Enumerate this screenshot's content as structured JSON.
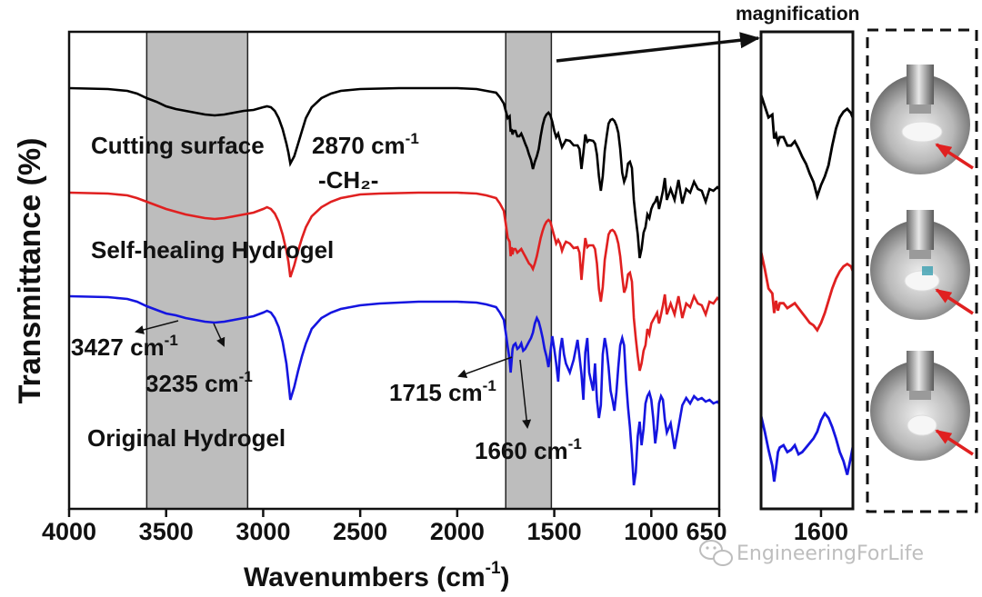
{
  "chart_data": [
    {
      "type": "line",
      "panel": "main",
      "xlabel": "Wavenumbers (cm",
      "xlabel_sup": "-1",
      "xlabel_close": ")",
      "ylabel": "Transmittance (%)",
      "xlim": [
        4000,
        650
      ],
      "x_ticks": [
        4000,
        3500,
        3000,
        2500,
        2000,
        1500,
        1000,
        650
      ],
      "x_tick_labels": [
        "4000",
        "3500",
        "3000",
        "2500",
        "2000",
        "1500",
        "1000",
        "650"
      ],
      "y_ticks": false,
      "shaded_regions": [
        [
          3600,
          3080
        ],
        [
          1750,
          1515
        ]
      ],
      "series": [
        {
          "name": "Cutting surface",
          "color": "#000000",
          "x": [
            4000,
            3900,
            3800,
            3700,
            3650,
            3600,
            3550,
            3500,
            3450,
            3400,
            3350,
            3300,
            3250,
            3200,
            3150,
            3100,
            3050,
            3000,
            2980,
            2960,
            2940,
            2920,
            2900,
            2880,
            2870,
            2860,
            2840,
            2820,
            2800,
            2780,
            2750,
            2700,
            2650,
            2600,
            2550,
            2500,
            2400,
            2300,
            2200,
            2100,
            2000,
            1900,
            1850,
            1800,
            1780,
            1760,
            1750,
            1740,
            1730,
            1725,
            1720,
            1715,
            1710,
            1700,
            1690,
            1680,
            1670,
            1660,
            1650,
            1640,
            1630,
            1620,
            1610,
            1600,
            1590,
            1580,
            1570,
            1560,
            1550,
            1540,
            1530,
            1520,
            1510,
            1500,
            1490,
            1480,
            1470,
            1460,
            1450,
            1440,
            1420,
            1400,
            1380,
            1370,
            1360,
            1350,
            1340,
            1330,
            1320,
            1300,
            1290,
            1280,
            1270,
            1260,
            1250,
            1240,
            1230,
            1220,
            1210,
            1200,
            1190,
            1180,
            1170,
            1160,
            1150,
            1140,
            1130,
            1120,
            1110,
            1100,
            1090,
            1080,
            1070,
            1060,
            1050,
            1040,
            1030,
            1020,
            1010,
            1000,
            990,
            980,
            970,
            960,
            950,
            940,
            930,
            920,
            900,
            880,
            860,
            840,
            820,
            800,
            780,
            760,
            740,
            720,
            700,
            680,
            660,
            650
          ],
          "y": [
            97,
            97.5,
            98,
            100,
            103,
            108,
            112,
            117,
            120,
            122,
            124,
            126,
            127,
            126,
            124,
            122,
            121,
            118,
            117,
            118,
            122,
            130,
            142,
            158,
            168,
            180,
            172,
            158,
            144,
            130,
            118,
            108,
            103,
            100,
            99,
            98,
            97.5,
            97,
            97,
            97,
            97,
            98,
            100,
            102,
            107,
            114,
            122,
            130,
            128,
            145,
            142,
            148,
            144,
            144,
            150,
            150,
            147,
            152,
            158,
            163,
            170,
            176,
            186,
            178,
            172,
            164,
            150,
            138,
            130,
            126,
            124,
            127,
            134,
            144,
            151,
            147,
            155,
            162,
            158,
            154,
            155,
            160,
            160,
            164,
            186,
            168,
            148,
            156,
            154,
            155,
            158,
            170,
            194,
            210,
            194,
            166,
            150,
            136,
            132,
            131,
            133,
            138,
            146,
            164,
            190,
            200,
            194,
            180,
            178,
            185,
            220,
            240,
            258,
            284,
            274,
            256,
            250,
            236,
            240,
            230,
            225,
            222,
            216,
            230,
            220,
            210,
            196,
            220,
            208,
            220,
            198,
            224,
            208,
            212,
            200,
            208,
            210,
            222,
            208,
            210,
            206,
            208
          ]
        },
        {
          "name": "Self-healing Hydrogel",
          "color": "#e02020",
          "x": [
            4000,
            3900,
            3800,
            3700,
            3650,
            3600,
            3550,
            3500,
            3450,
            3400,
            3350,
            3300,
            3250,
            3200,
            3150,
            3100,
            3050,
            3000,
            2980,
            2960,
            2940,
            2920,
            2900,
            2880,
            2870,
            2860,
            2840,
            2820,
            2800,
            2780,
            2750,
            2700,
            2650,
            2600,
            2550,
            2500,
            2400,
            2300,
            2200,
            2100,
            2000,
            1900,
            1850,
            1800,
            1780,
            1760,
            1750,
            1740,
            1730,
            1725,
            1720,
            1715,
            1710,
            1700,
            1690,
            1680,
            1670,
            1660,
            1650,
            1640,
            1630,
            1620,
            1610,
            1600,
            1590,
            1580,
            1570,
            1560,
            1550,
            1540,
            1530,
            1520,
            1510,
            1500,
            1490,
            1480,
            1470,
            1460,
            1450,
            1440,
            1420,
            1400,
            1380,
            1370,
            1360,
            1350,
            1340,
            1330,
            1320,
            1300,
            1290,
            1280,
            1270,
            1260,
            1250,
            1240,
            1230,
            1220,
            1210,
            1200,
            1190,
            1180,
            1170,
            1160,
            1150,
            1140,
            1130,
            1120,
            1110,
            1100,
            1090,
            1080,
            1070,
            1060,
            1050,
            1040,
            1030,
            1020,
            1010,
            1000,
            990,
            980,
            970,
            960,
            950,
            940,
            930,
            920,
            900,
            880,
            860,
            840,
            820,
            800,
            780,
            760,
            740,
            720,
            700,
            680,
            660,
            650
          ],
          "y": [
            212,
            212.5,
            213,
            215,
            218,
            222,
            226,
            230,
            233,
            236,
            238,
            240,
            241,
            240,
            238,
            236,
            234,
            230,
            228,
            230,
            235,
            244,
            258,
            276,
            288,
            305,
            292,
            276,
            262,
            250,
            238,
            228,
            222,
            218,
            216,
            214,
            213,
            212.5,
            212,
            212,
            212,
            213,
            215,
            218,
            224,
            232,
            246,
            262,
            266,
            282,
            272,
            280,
            274,
            274,
            278,
            276,
            274,
            278,
            282,
            286,
            290,
            292,
            296,
            290,
            282,
            272,
            262,
            254,
            248,
            244,
            242,
            244,
            252,
            260,
            268,
            264,
            268,
            276,
            270,
            266,
            268,
            273,
            272,
            278,
            308,
            284,
            262,
            272,
            270,
            270,
            274,
            290,
            318,
            332,
            316,
            286,
            272,
            258,
            254,
            253,
            255,
            260,
            268,
            282,
            304,
            322,
            316,
            302,
            300,
            310,
            350,
            372,
            392,
            408,
            400,
            386,
            380,
            362,
            368,
            356,
            352,
            348,
            344,
            356,
            346,
            336,
            324,
            346,
            334,
            346,
            326,
            350,
            334,
            338,
            326,
            334,
            336,
            346,
            332,
            334,
            328,
            330
          ]
        },
        {
          "name": "Original Hydrogel",
          "color": "#1515e0",
          "x": [
            4000,
            3900,
            3800,
            3700,
            3650,
            3600,
            3550,
            3500,
            3450,
            3400,
            3350,
            3300,
            3250,
            3200,
            3150,
            3100,
            3050,
            3000,
            2980,
            2960,
            2940,
            2920,
            2900,
            2880,
            2870,
            2860,
            2840,
            2820,
            2800,
            2780,
            2750,
            2700,
            2650,
            2600,
            2550,
            2500,
            2400,
            2300,
            2200,
            2100,
            2000,
            1900,
            1850,
            1800,
            1780,
            1760,
            1750,
            1740,
            1730,
            1725,
            1720,
            1715,
            1710,
            1700,
            1690,
            1680,
            1670,
            1660,
            1650,
            1640,
            1630,
            1620,
            1610,
            1600,
            1590,
            1580,
            1570,
            1560,
            1550,
            1540,
            1530,
            1520,
            1510,
            1500,
            1490,
            1480,
            1470,
            1460,
            1450,
            1440,
            1420,
            1400,
            1380,
            1370,
            1360,
            1350,
            1340,
            1330,
            1320,
            1300,
            1290,
            1280,
            1270,
            1260,
            1250,
            1240,
            1230,
            1220,
            1210,
            1200,
            1190,
            1180,
            1170,
            1160,
            1150,
            1140,
            1130,
            1120,
            1110,
            1100,
            1090,
            1080,
            1070,
            1060,
            1050,
            1040,
            1030,
            1020,
            1010,
            1000,
            990,
            980,
            970,
            960,
            950,
            940,
            930,
            920,
            900,
            880,
            860,
            840,
            820,
            800,
            780,
            760,
            740,
            720,
            700,
            680,
            660,
            650
          ],
          "y": [
            326,
            326.5,
            327,
            329,
            332,
            337,
            341,
            345,
            347,
            350,
            352,
            354,
            355,
            354,
            352,
            350,
            348,
            344,
            342,
            344,
            350,
            360,
            376,
            400,
            420,
            440,
            426,
            408,
            392,
            378,
            362,
            350,
            344,
            340,
            338,
            336,
            334,
            333,
            332,
            332,
            332,
            333,
            335,
            338,
            344,
            352,
            366,
            382,
            396,
            410,
            398,
            384,
            380,
            378,
            384,
            382,
            378,
            386,
            384,
            380,
            376,
            372,
            366,
            356,
            350,
            354,
            362,
            372,
            384,
            392,
            404,
            388,
            370,
            384,
            400,
            420,
            386,
            372,
            390,
            400,
            410,
            396,
            374,
            392,
            412,
            440,
            388,
            372,
            410,
            430,
            400,
            440,
            460,
            446,
            390,
            372,
            384,
            404,
            430,
            440,
            452,
            432,
            404,
            380,
            372,
            380,
            420,
            448,
            470,
            500,
            534,
            520,
            480,
            464,
            490,
            472,
            444,
            436,
            432,
            440,
            460,
            488,
            472,
            444,
            436,
            440,
            462,
            476,
            466,
            494,
            470,
            446,
            438,
            444,
            436,
            440,
            438,
            442,
            440,
            444,
            442,
            444
          ]
        }
      ],
      "curve_labels": [
        "Cutting surface",
        "Self-healing Hydrogel",
        "Original Hydrogel"
      ],
      "annotations": {
        "ch2_wavenumber": "2870 cm",
        "ch2_sup": "-1",
        "ch2_group": "-CH₂-",
        "oh1": "3427 cm",
        "oh1_sup": "-1",
        "oh2": "3235 cm",
        "oh2_sup": "-1",
        "co1": "1715 cm",
        "co1_sup": "-1",
        "co2": "1660 cm",
        "co2_sup": "-1"
      }
    },
    {
      "type": "line",
      "panel": "magnification",
      "title": "magnification",
      "title_color": "#e02020",
      "xlim": [
        1760,
        1515
      ],
      "x_ticks": [
        1600
      ],
      "x_tick_labels": [
        "1600"
      ],
      "series_colors": [
        "#000000",
        "#e02020",
        "#1515e0"
      ]
    }
  ],
  "photo_panel": {
    "photos": 3,
    "arrow_color": "#e02020"
  },
  "watermark": {
    "text": "EngineeringForLife",
    "icon": "wechat-icon"
  }
}
